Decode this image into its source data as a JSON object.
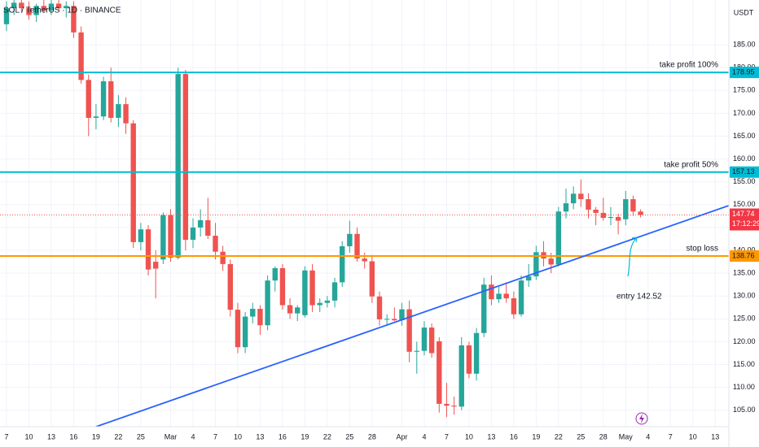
{
  "chart_data": {
    "type": "candlestick",
    "title": "SOL / TetherUS · 1D · BINANCE",
    "y_axis_label": "USDT",
    "x": [
      "Feb 7",
      "Feb 8",
      "Feb 9",
      "Feb 10",
      "Feb 11",
      "Feb 12",
      "Feb 13",
      "Feb 14",
      "Feb 15",
      "Feb 16",
      "Feb 17",
      "Feb 18",
      "Feb 19",
      "Feb 20",
      "Feb 21",
      "Feb 22",
      "Feb 23",
      "Feb 24",
      "Feb 25",
      "Feb 26",
      "Feb 27",
      "Feb 28",
      "Mar 1",
      "Mar 2",
      "Mar 3",
      "Mar 4",
      "Mar 5",
      "Mar 6",
      "Mar 7",
      "Mar 8",
      "Mar 9",
      "Mar 10",
      "Mar 11",
      "Mar 12",
      "Mar 13",
      "Mar 14",
      "Mar 15",
      "Mar 16",
      "Mar 17",
      "Mar 18",
      "Mar 19",
      "Mar 20",
      "Mar 21",
      "Mar 22",
      "Mar 23",
      "Mar 24",
      "Mar 25",
      "Mar 26",
      "Mar 27",
      "Mar 28",
      "Mar 29",
      "Mar 30",
      "Mar 31",
      "Apr 1",
      "Apr 2",
      "Apr 3",
      "Apr 4",
      "Apr 5",
      "Apr 6",
      "Apr 7",
      "Apr 8",
      "Apr 9",
      "Apr 10",
      "Apr 11",
      "Apr 12",
      "Apr 13",
      "Apr 14",
      "Apr 15",
      "Apr 16",
      "Apr 17",
      "Apr 18",
      "Apr 19",
      "Apr 20",
      "Apr 21",
      "Apr 22",
      "Apr 23",
      "Apr 24",
      "Apr 25",
      "Apr 26",
      "Apr 27",
      "Apr 28",
      "Apr 29",
      "Apr 30",
      "May 1",
      "May 2",
      "May 3"
    ],
    "open": [
      189.5,
      193,
      194.2,
      193,
      191.5,
      193.5,
      192.5,
      194,
      193,
      193.5,
      187.7,
      177.3,
      169,
      169.3,
      177,
      169,
      172,
      167.8,
      141.8,
      144.6,
      137.5,
      138,
      147.7,
      138.4,
      178.6,
      142.3,
      145,
      146.6,
      143.2,
      139.7,
      137,
      127,
      118.8,
      125.5,
      127.2,
      123.6,
      133.4,
      136.1,
      128,
      126.2,
      125.8,
      135.6,
      128,
      128.5,
      129,
      133,
      140.9,
      143.6,
      138.2,
      137.6,
      129.9,
      124.9,
      125,
      124.7,
      127.1,
      117.8,
      118,
      123.1,
      120.1,
      106.4,
      106,
      105.8,
      119.2,
      113,
      121.9,
      132.5,
      129.3,
      130.5,
      129.5,
      126,
      133.4,
      134.3,
      139.6,
      138.2,
      136.9,
      148.5,
      150.3,
      152.4,
      151.2,
      148.9,
      148.2,
      147.1,
      147.3,
      146.8,
      151.2,
      148.5
    ],
    "high": [
      194.5,
      195,
      195.5,
      194.5,
      194,
      195,
      195,
      195.5,
      194.5,
      194.5,
      189,
      178.5,
      172,
      178,
      180,
      174,
      173.5,
      168.5,
      146,
      145.5,
      140,
      148.3,
      149,
      180,
      179.5,
      147,
      149,
      151.5,
      146,
      141,
      138,
      128.5,
      126.5,
      128.5,
      128,
      134.5,
      136.5,
      137,
      129.5,
      128,
      136.5,
      137,
      129.5,
      130,
      134,
      142,
      146.5,
      145,
      139.5,
      139,
      131,
      126,
      127.5,
      128.5,
      129,
      120,
      124.5,
      124,
      121,
      111,
      108,
      121,
      120,
      123,
      134,
      134.5,
      132,
      133,
      131,
      134.5,
      137,
      141,
      142,
      139.5,
      149.5,
      153.5,
      154,
      155.5,
      152.5,
      149.5,
      151.5,
      149.5,
      148,
      153,
      152,
      149
    ],
    "low": [
      188,
      191.5,
      192,
      190.5,
      190,
      192,
      191.5,
      192.5,
      191,
      186.5,
      176.5,
      165,
      166.5,
      168.5,
      168,
      167,
      165.5,
      140.5,
      140,
      134.5,
      129.5,
      137,
      137.5,
      138,
      140,
      140.5,
      143,
      142.5,
      138,
      135.5,
      125.5,
      117.5,
      117.5,
      124,
      121.5,
      122.5,
      131,
      127,
      125,
      124.5,
      125.3,
      126.5,
      126.5,
      127.5,
      127.5,
      132,
      139.5,
      137.5,
      136,
      128.5,
      123.5,
      123.5,
      124.5,
      123.5,
      115.5,
      113,
      117,
      116.5,
      104.5,
      103.5,
      104,
      105,
      112,
      111.5,
      121,
      128,
      128.5,
      128.5,
      125,
      125.5,
      132,
      133.5,
      136.5,
      135,
      136.5,
      147,
      149,
      149.5,
      147,
      145.5,
      146.5,
      145.5,
      143.5,
      145.5,
      147.5,
      147.2
    ],
    "close": [
      193,
      194.2,
      193,
      191.5,
      193.5,
      192.5,
      194,
      193,
      193.5,
      187.7,
      177.3,
      169,
      169.3,
      177,
      169,
      172,
      167.8,
      141.8,
      144.6,
      135.8,
      136,
      147.7,
      138.4,
      178.6,
      142.3,
      145,
      146.6,
      143.2,
      139.7,
      137,
      127,
      118.8,
      125.5,
      127.2,
      123.6,
      133.4,
      136.1,
      128,
      126.2,
      127.5,
      135.6,
      128,
      128.5,
      129,
      133,
      140.9,
      143.6,
      138.2,
      137.6,
      129.9,
      124.9,
      125,
      124.7,
      127.1,
      117.8,
      118,
      123.1,
      117.5,
      106.4,
      106,
      105.8,
      119.2,
      113,
      121.9,
      132.5,
      129.3,
      130.5,
      129.5,
      126,
      133.4,
      134.3,
      139.6,
      138.2,
      136.9,
      148.5,
      150.3,
      152.4,
      151.2,
      148.9,
      148.2,
      147.1,
      147.3,
      146.5,
      151.2,
      148.5,
      147.74
    ],
    "up_color": "#26a69a",
    "down_color": "#ef5350",
    "ylim": [
      101.4,
      194.8
    ],
    "yticks": [
      {
        "value": 105,
        "label": "105.00"
      },
      {
        "value": 110,
        "label": "110.00"
      },
      {
        "value": 115,
        "label": "115.00"
      },
      {
        "value": 120,
        "label": "120.00"
      },
      {
        "value": 125,
        "label": "125.00"
      },
      {
        "value": 130,
        "label": "130.00"
      },
      {
        "value": 135,
        "label": "135.00"
      },
      {
        "value": 140,
        "label": "140.00"
      },
      {
        "value": 145,
        "label": "145.00"
      },
      {
        "value": 150,
        "label": "150.00"
      },
      {
        "value": 155,
        "label": "155.00"
      },
      {
        "value": 160,
        "label": "160.00"
      },
      {
        "value": 165,
        "label": "165.00"
      },
      {
        "value": 170,
        "label": "170.00"
      },
      {
        "value": 175,
        "label": "175.00"
      },
      {
        "value": 180,
        "label": "180.00"
      },
      {
        "value": 185,
        "label": "185.00"
      }
    ],
    "xticks": [
      {
        "value": "Feb 7",
        "label": "7"
      },
      {
        "value": "Feb 10",
        "label": "10"
      },
      {
        "value": "Feb 13",
        "label": "13"
      },
      {
        "value": "Feb 16",
        "label": "16"
      },
      {
        "value": "Feb 19",
        "label": "19"
      },
      {
        "value": "Feb 22",
        "label": "22"
      },
      {
        "value": "Feb 25",
        "label": "25"
      },
      {
        "value": "Mar 1",
        "label": "Mar"
      },
      {
        "value": "Mar 4",
        "label": "4"
      },
      {
        "value": "Mar 7",
        "label": "7"
      },
      {
        "value": "Mar 10",
        "label": "10"
      },
      {
        "value": "Mar 13",
        "label": "13"
      },
      {
        "value": "Mar 16",
        "label": "16"
      },
      {
        "value": "Mar 19",
        "label": "19"
      },
      {
        "value": "Mar 22",
        "label": "22"
      },
      {
        "value": "Mar 25",
        "label": "25"
      },
      {
        "value": "Mar 28",
        "label": "28"
      },
      {
        "value": "Apr 1",
        "label": "Apr"
      },
      {
        "value": "Apr 4",
        "label": "4"
      },
      {
        "value": "Apr 7",
        "label": "7"
      },
      {
        "value": "Apr 10",
        "label": "10"
      },
      {
        "value": "Apr 13",
        "label": "13"
      },
      {
        "value": "Apr 16",
        "label": "16"
      },
      {
        "value": "Apr 19",
        "label": "19"
      },
      {
        "value": "Apr 22",
        "label": "22"
      },
      {
        "value": "Apr 25",
        "label": "25"
      },
      {
        "value": "Apr 28",
        "label": "28"
      },
      {
        "value": "May 1",
        "label": "May"
      },
      {
        "value": "May 4",
        "label": "4"
      },
      {
        "value": "May 7",
        "label": "7"
      },
      {
        "value": "May 10",
        "label": "10"
      },
      {
        "value": "May 13",
        "label": "13"
      }
    ],
    "grid": true,
    "countdown": "17:12:29",
    "levels": [
      {
        "name": "take profit 100%",
        "value": 178.95,
        "color": "#00bcd4"
      },
      {
        "name": "take profit 50%",
        "value": 157.13,
        "color": "#00bcd4"
      },
      {
        "name": "stop loss",
        "value": 138.76,
        "color": "#ff9800"
      }
    ],
    "trendline": {
      "x": [
        "Feb 19",
        "May 15"
      ],
      "values": [
        101.4,
        149.9
      ],
      "color": "#2962ff"
    },
    "annotation": "entry 142.52"
  }
}
